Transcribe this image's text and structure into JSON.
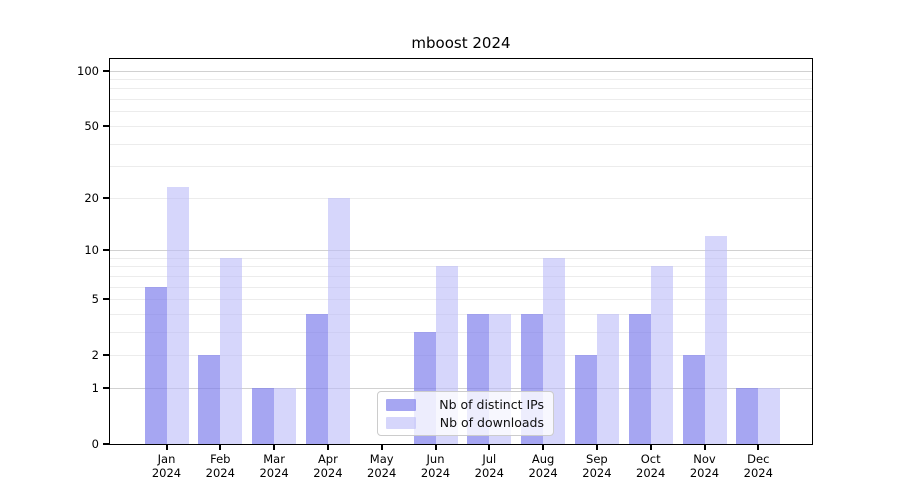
{
  "figure": {
    "title": "mboost 2024"
  },
  "chart_data": {
    "type": "bar",
    "title": "mboost 2024",
    "categories": [
      "Jan 2024",
      "Feb 2024",
      "Mar 2024",
      "Apr 2024",
      "May 2024",
      "Jun 2024",
      "Jul 2024",
      "Aug 2024",
      "Sep 2024",
      "Oct 2024",
      "Nov 2024",
      "Dec 2024"
    ],
    "series": [
      {
        "name": "Nb of distinct IPs",
        "color": "rgba(128,128,236,0.70)",
        "values": [
          6,
          2,
          1,
          4,
          0,
          3,
          4,
          4,
          2,
          4,
          2,
          1
        ]
      },
      {
        "name": "Nb of downloads",
        "color": "rgba(187,187,248,0.60)",
        "values": [
          23,
          9,
          1,
          20,
          0,
          8,
          4,
          9,
          4,
          8,
          12,
          1
        ]
      }
    ],
    "xlabel": "",
    "ylabel": "",
    "yscale": "log1p",
    "ylim": [
      0,
      115
    ],
    "yticks": [
      0,
      1,
      2,
      5,
      10,
      20,
      50,
      100
    ],
    "grid": {
      "minor": [
        2,
        3,
        4,
        5,
        6,
        7,
        8,
        9,
        20,
        30,
        40,
        50,
        60,
        70,
        80,
        90
      ],
      "major": [
        1,
        10,
        100
      ]
    },
    "legend_position": "lower center"
  }
}
